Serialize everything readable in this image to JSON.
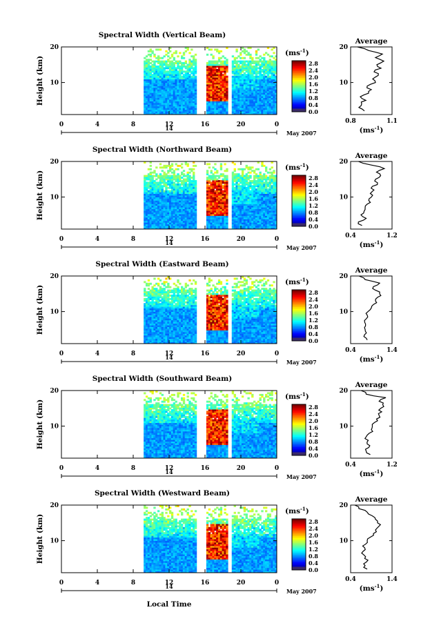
{
  "figure": {
    "xaxis_label": "Local Time",
    "date_label": "May 2007",
    "date_tick": "14",
    "average_title": "Average",
    "unit_label": "(ms",
    "unit_exp": "-1"
  },
  "chart_data": [
    {
      "type": "heatmap",
      "title": "Spectral Width (Vertical Beam)",
      "ylabel": "Height (km)",
      "xlabel": "Local Time",
      "x_ticks": [
        "0",
        "4",
        "8",
        "12",
        "16",
        "20",
        "0"
      ],
      "xlim": [
        0,
        24
      ],
      "y_ticks": [
        "10",
        "20"
      ],
      "ylim": [
        1,
        20
      ],
      "colorbar_label": "(ms-1)",
      "colorbar_ticks": [
        "2.8",
        "2.4",
        "2.0",
        "1.6",
        "1.2",
        "0.8",
        "0.4",
        "0.0"
      ],
      "data_gaps_hours": [
        [
          0,
          9.2
        ],
        [
          15.1,
          16.2
        ],
        [
          18.5,
          18.9
        ]
      ],
      "profile": {
        "title": "Average",
        "xlabel": "(ms-1)",
        "xlim": [
          0.8,
          1.1
        ],
        "x_ticks": [
          "0.8",
          "1.1"
        ],
        "y_ticks": [
          "10",
          "20"
        ],
        "heights": [
          2,
          3,
          4,
          5,
          6,
          7,
          8,
          9,
          10,
          11,
          12,
          13,
          14,
          15,
          16,
          17,
          18,
          19,
          20
        ],
        "values": [
          0.9,
          0.86,
          0.88,
          0.91,
          0.87,
          0.93,
          0.95,
          0.92,
          0.98,
          0.96,
          1.0,
          0.97,
          1.02,
          0.99,
          1.04,
          0.98,
          1.03,
          0.93,
          0.85
        ]
      }
    },
    {
      "type": "heatmap",
      "title": "Spectral Width (Northward Beam)",
      "ylabel": "Height (km)",
      "xlabel": "Local Time",
      "x_ticks": [
        "0",
        "4",
        "8",
        "12",
        "16",
        "20",
        "0"
      ],
      "xlim": [
        0,
        24
      ],
      "y_ticks": [
        "10",
        "20"
      ],
      "ylim": [
        1,
        20
      ],
      "colorbar_label": "(ms-1)",
      "colorbar_ticks": [
        "2.8",
        "2.4",
        "2.0",
        "1.6",
        "1.2",
        "0.8",
        "0.4",
        "0.0"
      ],
      "data_gaps_hours": [
        [
          0,
          9.2
        ],
        [
          15.1,
          16.2
        ],
        [
          18.5,
          18.9
        ]
      ],
      "profile": {
        "title": "Average",
        "xlabel": "(ms-1)",
        "xlim": [
          0.4,
          1.2
        ],
        "x_ticks": [
          "0.4",
          "1.2"
        ],
        "y_ticks": [
          "10",
          "20"
        ],
        "heights": [
          2,
          3,
          4,
          5,
          6,
          7,
          8,
          9,
          10,
          11,
          12,
          13,
          14,
          15,
          16,
          17,
          18,
          19,
          20
        ],
        "values": [
          0.62,
          0.55,
          0.7,
          0.6,
          0.66,
          0.68,
          0.72,
          0.75,
          0.8,
          0.78,
          0.85,
          0.82,
          0.92,
          0.88,
          0.98,
          0.9,
          1.05,
          0.8,
          0.55
        ]
      }
    },
    {
      "type": "heatmap",
      "title": "Spectral Width (Eastward Beam)",
      "ylabel": "Height (km)",
      "xlabel": "Local Time",
      "x_ticks": [
        "0",
        "4",
        "8",
        "12",
        "16",
        "20",
        "0"
      ],
      "xlim": [
        0,
        24
      ],
      "y_ticks": [
        "10",
        "20"
      ],
      "ylim": [
        1,
        20
      ],
      "colorbar_label": "(ms-1)",
      "colorbar_ticks": [
        "2.8",
        "2.4",
        "2.0",
        "1.6",
        "1.2",
        "0.8",
        "0.4",
        "0.0"
      ],
      "data_gaps_hours": [
        [
          0,
          9.2
        ],
        [
          15.1,
          16.2
        ],
        [
          18.5,
          18.9
        ]
      ],
      "profile": {
        "title": "Average",
        "xlabel": "(ms-1)",
        "xlim": [
          0.4,
          1.4
        ],
        "x_ticks": [
          "0.4",
          "1.4"
        ],
        "y_ticks": [
          "10",
          "20"
        ],
        "heights": [
          2,
          3,
          4,
          5,
          6,
          7,
          8,
          9,
          10,
          11,
          12,
          13,
          14,
          15,
          16,
          17,
          18,
          19,
          20
        ],
        "values": [
          0.8,
          0.72,
          0.78,
          0.75,
          0.76,
          0.74,
          0.78,
          0.8,
          0.82,
          0.9,
          0.95,
          1.0,
          1.05,
          1.1,
          1.0,
          0.95,
          1.1,
          0.75,
          0.6
        ]
      }
    },
    {
      "type": "heatmap",
      "title": "Spectral Width (Southward Beam)",
      "ylabel": "Height (km)",
      "xlabel": "Local Time",
      "x_ticks": [
        "0",
        "4",
        "8",
        "12",
        "16",
        "20",
        "0"
      ],
      "xlim": [
        0,
        24
      ],
      "y_ticks": [
        "10",
        "20"
      ],
      "ylim": [
        1,
        20
      ],
      "colorbar_label": "(ms-1)",
      "colorbar_ticks": [
        "2.8",
        "2.4",
        "2.0",
        "1.6",
        "1.2",
        "0.8",
        "0.4",
        "0.0"
      ],
      "data_gaps_hours": [
        [
          0,
          9.2
        ],
        [
          15.1,
          16.2
        ],
        [
          18.5,
          18.9
        ]
      ],
      "profile": {
        "title": "Average",
        "xlabel": "(ms-1)",
        "xlim": [
          0.4,
          1.2
        ],
        "x_ticks": [
          "0.4",
          "1.2"
        ],
        "y_ticks": [
          "10",
          "20"
        ],
        "heights": [
          2,
          3,
          4,
          5,
          6,
          7,
          8,
          9,
          10,
          11,
          12,
          13,
          14,
          15,
          16,
          17,
          18,
          19,
          20
        ],
        "values": [
          0.78,
          0.7,
          0.75,
          0.72,
          0.74,
          0.7,
          0.76,
          0.8,
          0.82,
          0.86,
          0.9,
          0.95,
          1.0,
          0.98,
          1.02,
          0.95,
          1.08,
          0.7,
          0.6
        ]
      }
    },
    {
      "type": "heatmap",
      "title": "Spectral Width (Westward Beam)",
      "ylabel": "Height (km)",
      "xlabel": "Local Time",
      "x_ticks": [
        "0",
        "4",
        "8",
        "12",
        "16",
        "20",
        "0"
      ],
      "xlim": [
        0,
        24
      ],
      "y_ticks": [
        "10",
        "20"
      ],
      "ylim": [
        1,
        20
      ],
      "colorbar_label": "(ms-1)",
      "colorbar_ticks": [
        "2.8",
        "2.4",
        "2.0",
        "1.6",
        "1.2",
        "0.8",
        "0.4",
        "0.0"
      ],
      "data_gaps_hours": [
        [
          0,
          9.2
        ],
        [
          15.1,
          16.2
        ],
        [
          18.5,
          18.9
        ]
      ],
      "profile": {
        "title": "Average",
        "xlabel": "(ms-1)",
        "xlim": [
          0.4,
          1.4
        ],
        "x_ticks": [
          "0.4",
          "1.4"
        ],
        "y_ticks": [
          "10",
          "20"
        ],
        "heights": [
          2,
          3,
          4,
          5,
          6,
          7,
          8,
          9,
          10,
          11,
          12,
          13,
          14,
          15,
          16,
          17,
          18,
          19,
          20
        ],
        "values": [
          0.8,
          0.75,
          0.78,
          0.74,
          0.72,
          0.7,
          0.74,
          0.76,
          0.8,
          0.88,
          0.95,
          1.0,
          1.08,
          1.05,
          1.0,
          0.92,
          0.8,
          0.6,
          0.5
        ]
      }
    }
  ]
}
